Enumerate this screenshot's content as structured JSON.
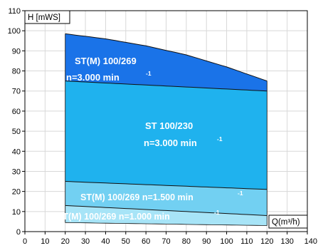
{
  "chart_data": {
    "type": "area",
    "xlabel": "Q(m³/h)",
    "ylabel": "H [mWS]",
    "xlim": [
      0,
      140
    ],
    "ylim": [
      0,
      110
    ],
    "x_ticks": [
      "0",
      "10",
      "20",
      "30",
      "40",
      "50",
      "60",
      "70",
      "80",
      "90",
      "100",
      "110",
      "120",
      "130",
      "140"
    ],
    "y_ticks": [
      "0",
      "10",
      "20",
      "30",
      "40",
      "50",
      "60",
      "70",
      "80",
      "90",
      "100",
      "110"
    ],
    "grid": true,
    "series": [
      {
        "label_lines": [
          "ST(M) 100/269",
          "n=3.000 min",
          "-1"
        ],
        "color": "#1a73e8",
        "x_range": [
          20,
          120
        ],
        "upper": [
          [
            20,
            98.5
          ],
          [
            40,
            96
          ],
          [
            60,
            92.5
          ],
          [
            80,
            88
          ],
          [
            100,
            82
          ],
          [
            120,
            75
          ]
        ],
        "lower": [
          [
            20,
            75
          ],
          [
            120,
            70
          ]
        ]
      },
      {
        "label_lines": [
          "ST 100/230",
          "n=3.000 min",
          "-1"
        ],
        "color": "#1fb2ee",
        "x_range": [
          20,
          120
        ],
        "upper": [
          [
            20,
            75
          ],
          [
            120,
            70
          ]
        ],
        "lower": [
          [
            20,
            25
          ],
          [
            120,
            21
          ]
        ]
      },
      {
        "label_lines": [
          "ST(M) 100/269  n=1.500 min",
          "-1"
        ],
        "color": "#72d0f2",
        "x_range": [
          20,
          120
        ],
        "upper": [
          [
            20,
            25
          ],
          [
            120,
            21
          ]
        ],
        "lower": [
          [
            20,
            13
          ],
          [
            120,
            8
          ]
        ]
      },
      {
        "label_lines": [
          "ST(M) 100/269  n=1.000 min",
          "-1"
        ],
        "color": "#a7e4f7",
        "x_range": [
          20,
          120
        ],
        "upper": [
          [
            20,
            13
          ],
          [
            120,
            8
          ]
        ],
        "lower": [
          [
            20,
            4.5
          ],
          [
            120,
            3
          ]
        ]
      }
    ]
  }
}
